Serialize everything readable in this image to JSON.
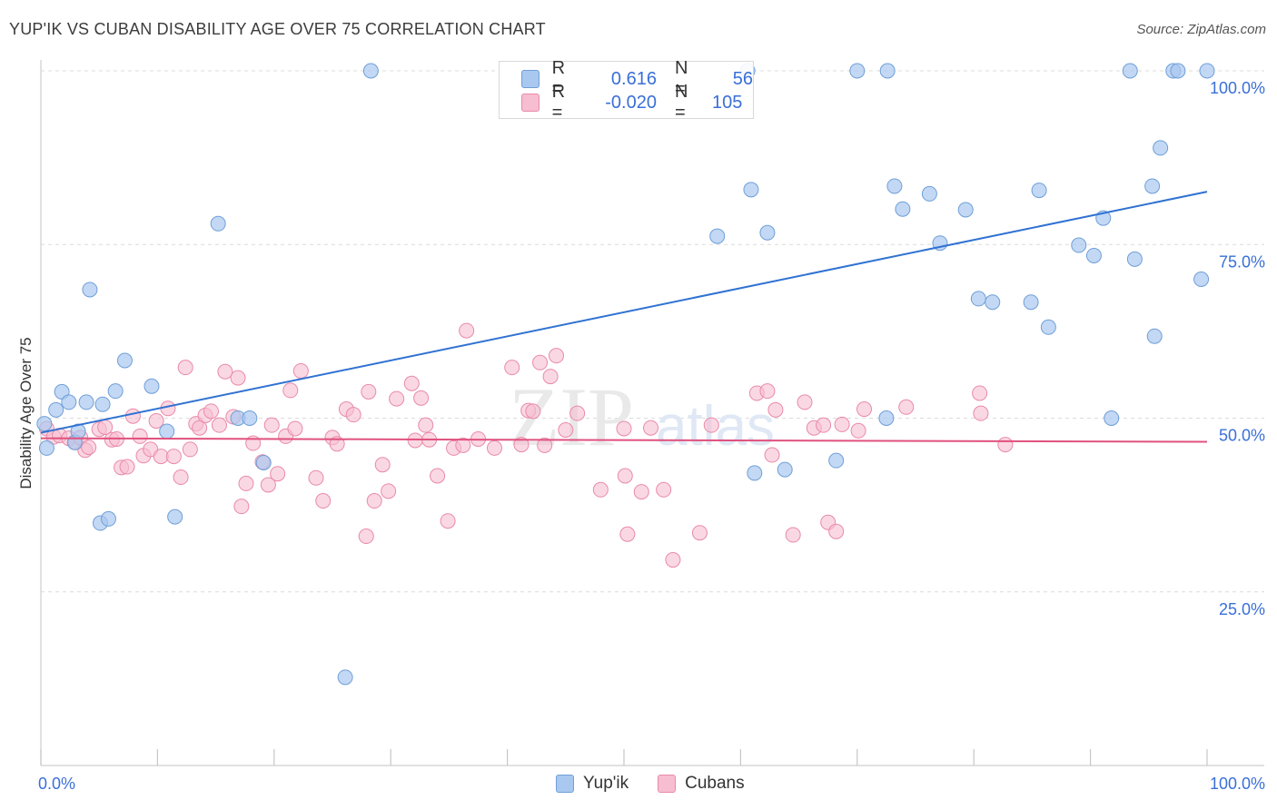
{
  "header": {
    "title": "YUP'IK VS CUBAN DISABILITY AGE OVER 75 CORRELATION CHART",
    "source": "Source: ZipAtlas.com"
  },
  "watermark": {
    "zip": "ZIP",
    "atlas": "atlas"
  },
  "legend": {
    "rows": [
      {
        "r_label": "R =",
        "r_value": "0.616",
        "n_label": "N =",
        "n_value": "56"
      },
      {
        "r_label": "R =",
        "r_value": "-0.020",
        "n_label": "N =",
        "n_value": "105"
      }
    ]
  },
  "bottom_legend": {
    "yupik": "Yup'ik",
    "cubans": "Cubans"
  },
  "colors": {
    "yupik_fill": "#a9c8ef",
    "yupik_stroke": "#6f9fd8",
    "yupik_line": "#2f72d2",
    "cuban_fill": "#f6bed0",
    "cuban_stroke": "#e98aa9",
    "cuban_line": "#e0517e",
    "value_text": "#3a6fd8",
    "grid": "#dcdcdc"
  },
  "chart_data": {
    "type": "scatter",
    "title": "YUP'IK VS CUBAN DISABILITY AGE OVER 75 CORRELATION CHART",
    "xlabel": "",
    "ylabel": "Disability Age Over 75",
    "xlim": [
      0,
      100
    ],
    "ylim": [
      0,
      100
    ],
    "x_tick_labels": [
      "0.0%",
      "100.0%"
    ],
    "y_tick_labels": [
      "25.0%",
      "50.0%",
      "75.0%",
      "100.0%"
    ],
    "y_ticks": [
      25,
      50,
      75,
      100
    ],
    "grid": true,
    "legend_position": "top-center",
    "series": [
      {
        "name": "Yup'ik",
        "r": 0.616,
        "n": 56,
        "trend": {
          "x": [
            0,
            100
          ],
          "y": [
            47.9,
            82.6
          ]
        },
        "points": [
          [
            0.3,
            49.2
          ],
          [
            0.5,
            45.7
          ],
          [
            1.3,
            51.2
          ],
          [
            1.8,
            53.8
          ],
          [
            2.4,
            52.3
          ],
          [
            2.9,
            46.5
          ],
          [
            3.2,
            48.1
          ],
          [
            3.9,
            52.3
          ],
          [
            4.2,
            68.5
          ],
          [
            5.1,
            34.9
          ],
          [
            5.3,
            52.0
          ],
          [
            5.8,
            35.5
          ],
          [
            6.4,
            53.9
          ],
          [
            7.2,
            58.3
          ],
          [
            9.5,
            54.6
          ],
          [
            10.8,
            48.1
          ],
          [
            11.5,
            35.8
          ],
          [
            15.2,
            78.0
          ],
          [
            16.9,
            50.0
          ],
          [
            17.9,
            50.0
          ],
          [
            19.1,
            43.6
          ],
          [
            26.1,
            12.7
          ],
          [
            28.3,
            100
          ],
          [
            58.0,
            76.2
          ],
          [
            60.6,
            100
          ],
          [
            60.9,
            82.9
          ],
          [
            61.2,
            42.1
          ],
          [
            62.3,
            76.7
          ],
          [
            63.8,
            42.6
          ],
          [
            68.2,
            43.9
          ],
          [
            70.0,
            100
          ],
          [
            72.5,
            50.0
          ],
          [
            72.6,
            100
          ],
          [
            73.2,
            83.4
          ],
          [
            73.9,
            80.1
          ],
          [
            76.2,
            82.3
          ],
          [
            77.1,
            75.2
          ],
          [
            79.3,
            80.0
          ],
          [
            80.4,
            67.2
          ],
          [
            81.6,
            66.7
          ],
          [
            84.9,
            66.7
          ],
          [
            85.6,
            82.8
          ],
          [
            86.4,
            63.1
          ],
          [
            89.0,
            74.9
          ],
          [
            90.3,
            73.4
          ],
          [
            91.1,
            78.8
          ],
          [
            91.8,
            50.0
          ],
          [
            93.4,
            100
          ],
          [
            93.8,
            72.9
          ],
          [
            95.3,
            83.4
          ],
          [
            95.5,
            61.8
          ],
          [
            96.0,
            88.9
          ],
          [
            97.1,
            100
          ],
          [
            97.5,
            100
          ],
          [
            99.5,
            70.0
          ],
          [
            100,
            100
          ]
        ]
      },
      {
        "name": "Cubans",
        "r": -0.02,
        "n": 105,
        "trend": {
          "x": [
            0,
            100
          ],
          "y": [
            47.1,
            46.6
          ]
        },
        "points": [
          [
            0.5,
            48.5
          ],
          [
            1.1,
            47.3
          ],
          [
            1.6,
            47.5
          ],
          [
            2.4,
            47.1
          ],
          [
            3.0,
            46.5
          ],
          [
            3.4,
            47.2
          ],
          [
            3.8,
            45.4
          ],
          [
            4.1,
            45.8
          ],
          [
            5.0,
            48.4
          ],
          [
            5.5,
            48.7
          ],
          [
            6.1,
            46.9
          ],
          [
            6.5,
            47.0
          ],
          [
            6.9,
            42.9
          ],
          [
            7.4,
            43.0
          ],
          [
            7.9,
            50.3
          ],
          [
            8.5,
            47.4
          ],
          [
            8.8,
            44.6
          ],
          [
            9.4,
            45.5
          ],
          [
            9.9,
            49.6
          ],
          [
            10.3,
            44.5
          ],
          [
            10.9,
            51.4
          ],
          [
            11.4,
            44.5
          ],
          [
            12.0,
            41.5
          ],
          [
            12.4,
            57.3
          ],
          [
            12.8,
            45.5
          ],
          [
            13.3,
            49.2
          ],
          [
            13.6,
            48.6
          ],
          [
            14.1,
            50.4
          ],
          [
            14.6,
            51.0
          ],
          [
            15.3,
            49.0
          ],
          [
            15.8,
            56.7
          ],
          [
            16.5,
            50.2
          ],
          [
            16.9,
            55.8
          ],
          [
            17.2,
            37.3
          ],
          [
            17.6,
            40.6
          ],
          [
            18.2,
            46.4
          ],
          [
            19.0,
            43.7
          ],
          [
            19.5,
            40.4
          ],
          [
            19.8,
            49.0
          ],
          [
            20.3,
            42.0
          ],
          [
            21.0,
            47.4
          ],
          [
            21.4,
            54.0
          ],
          [
            21.8,
            48.5
          ],
          [
            22.3,
            56.8
          ],
          [
            23.6,
            41.4
          ],
          [
            24.2,
            38.1
          ],
          [
            25.0,
            47.2
          ],
          [
            25.4,
            46.3
          ],
          [
            26.2,
            51.3
          ],
          [
            26.8,
            50.5
          ],
          [
            27.9,
            33.0
          ],
          [
            28.1,
            53.8
          ],
          [
            28.6,
            38.1
          ],
          [
            29.3,
            43.3
          ],
          [
            29.8,
            39.5
          ],
          [
            30.5,
            52.8
          ],
          [
            31.8,
            55.0
          ],
          [
            32.1,
            46.8
          ],
          [
            32.6,
            52.9
          ],
          [
            33.0,
            49.0
          ],
          [
            33.3,
            46.9
          ],
          [
            34.0,
            41.7
          ],
          [
            34.9,
            35.2
          ],
          [
            35.4,
            45.7
          ],
          [
            36.2,
            46.1
          ],
          [
            36.5,
            62.6
          ],
          [
            37.5,
            47.0
          ],
          [
            38.9,
            45.7
          ],
          [
            40.4,
            57.3
          ],
          [
            41.2,
            46.2
          ],
          [
            41.8,
            51.1
          ],
          [
            42.2,
            51.0
          ],
          [
            42.8,
            58.0
          ],
          [
            43.2,
            46.1
          ],
          [
            43.7,
            56.0
          ],
          [
            44.2,
            59.0
          ],
          [
            48.0,
            39.7
          ],
          [
            50.1,
            41.7
          ],
          [
            50.3,
            33.3
          ],
          [
            51.5,
            39.4
          ],
          [
            52.3,
            48.6
          ],
          [
            53.4,
            39.7
          ],
          [
            54.2,
            29.6
          ],
          [
            56.5,
            33.5
          ],
          [
            57.5,
            49.0
          ],
          [
            61.4,
            53.6
          ],
          [
            62.3,
            53.9
          ],
          [
            62.7,
            44.7
          ],
          [
            63.0,
            51.2
          ],
          [
            64.5,
            33.2
          ],
          [
            65.5,
            52.3
          ],
          [
            66.3,
            48.6
          ],
          [
            67.1,
            49.0
          ],
          [
            67.5,
            35.0
          ],
          [
            68.2,
            33.7
          ],
          [
            68.7,
            49.1
          ],
          [
            70.1,
            48.2
          ],
          [
            70.6,
            51.3
          ],
          [
            74.2,
            51.6
          ],
          [
            80.5,
            53.6
          ],
          [
            80.6,
            50.7
          ],
          [
            82.7,
            46.2
          ],
          [
            50.0,
            48.5
          ],
          [
            46.0,
            50.7
          ],
          [
            45.0,
            48.3
          ]
        ]
      }
    ]
  }
}
